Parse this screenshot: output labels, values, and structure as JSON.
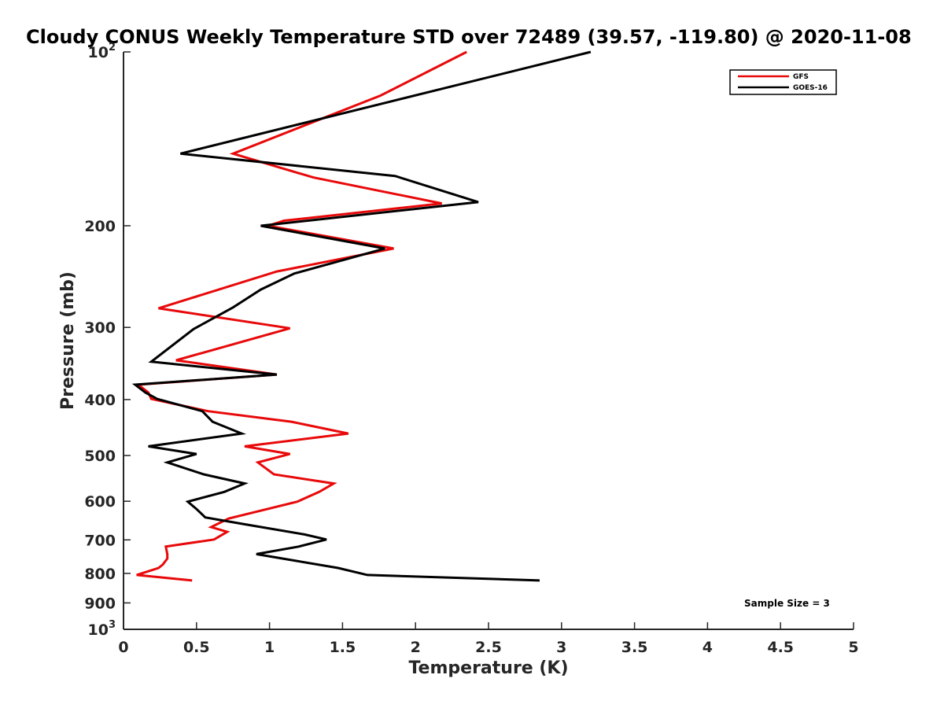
{
  "chart_data": {
    "type": "line",
    "title": "Cloudy CONUS Weekly Temperature STD over 72489 (39.57, -119.80) @ 2020-11-08",
    "xlabel": "Temperature (K)",
    "ylabel": "Pressure (mb)",
    "xlim": [
      0,
      5
    ],
    "ylim": [
      100,
      1000
    ],
    "y_scale": "log",
    "y_reversed": true,
    "grid": false,
    "legend_position": "top-right",
    "x_ticks": [
      "0",
      "0.5",
      "1",
      "1.5",
      "2",
      "2.5",
      "3",
      "3.5",
      "4",
      "4.5",
      "5"
    ],
    "y_ticks": [
      {
        "value": 100,
        "base": "10",
        "exp": "2"
      },
      {
        "value": 200,
        "label": "200"
      },
      {
        "value": 300,
        "label": "300"
      },
      {
        "value": 400,
        "label": "400"
      },
      {
        "value": 500,
        "label": "500"
      },
      {
        "value": 600,
        "label": "600"
      },
      {
        "value": 700,
        "label": "700"
      },
      {
        "value": 800,
        "label": "800"
      },
      {
        "value": 900,
        "label": "900"
      },
      {
        "value": 1000,
        "base": "10",
        "exp": "3"
      }
    ],
    "series": [
      {
        "name": "GFS",
        "color": "#e8090a",
        "points": [
          [
            2.35,
            100
          ],
          [
            1.76,
            119
          ],
          [
            0.75,
            150
          ],
          [
            1.3,
            165
          ],
          [
            2.18,
            183
          ],
          [
            1.1,
            196
          ],
          [
            0.99,
            200
          ],
          [
            1.85,
            219
          ],
          [
            1.05,
            240
          ],
          [
            0.24,
            278
          ],
          [
            1.14,
            301
          ],
          [
            0.36,
            342
          ],
          [
            1.05,
            362
          ],
          [
            0.1,
            377
          ],
          [
            0.17,
            389
          ],
          [
            0.19,
            399
          ],
          [
            0.58,
            419
          ],
          [
            1.15,
            437
          ],
          [
            1.54,
            458
          ],
          [
            0.83,
            482
          ],
          [
            1.14,
            497
          ],
          [
            0.92,
            514
          ],
          [
            1.03,
            539
          ],
          [
            1.44,
            559
          ],
          [
            1.34,
            578
          ],
          [
            1.19,
            601
          ],
          [
            0.72,
            643
          ],
          [
            0.6,
            665
          ],
          [
            0.71,
            678
          ],
          [
            0.62,
            699
          ],
          [
            0.29,
            719
          ],
          [
            0.3,
            741
          ],
          [
            0.3,
            754
          ],
          [
            0.27,
            772
          ],
          [
            0.24,
            783
          ],
          [
            0.09,
            805
          ],
          [
            0.47,
            823
          ]
        ]
      },
      {
        "name": "GOES-16",
        "color": "#000000",
        "points": [
          [
            3.2,
            100
          ],
          [
            0.39,
            150
          ],
          [
            1.86,
            164
          ],
          [
            2.43,
            182
          ],
          [
            0.94,
            200
          ],
          [
            1.79,
            219
          ],
          [
            1.17,
            242
          ],
          [
            0.94,
            258
          ],
          [
            0.75,
            277
          ],
          [
            0.48,
            302
          ],
          [
            0.19,
            344
          ],
          [
            1.05,
            362
          ],
          [
            0.08,
            377
          ],
          [
            0.15,
            389
          ],
          [
            0.23,
            399
          ],
          [
            0.54,
            419
          ],
          [
            0.61,
            437
          ],
          [
            0.81,
            458
          ],
          [
            0.17,
            482
          ],
          [
            0.5,
            497
          ],
          [
            0.3,
            514
          ],
          [
            0.55,
            539
          ],
          [
            0.83,
            559
          ],
          [
            0.69,
            578
          ],
          [
            0.44,
            601
          ],
          [
            0.5,
            619
          ],
          [
            0.56,
            640
          ],
          [
            0.82,
            657
          ],
          [
            1.24,
            685
          ],
          [
            1.39,
            699
          ],
          [
            1.2,
            719
          ],
          [
            0.91,
            741
          ],
          [
            1.18,
            761
          ],
          [
            1.47,
            783
          ],
          [
            1.67,
            805
          ],
          [
            2.85,
            823
          ]
        ]
      }
    ],
    "legend": {
      "entries": [
        "GFS",
        "GOES-16"
      ]
    },
    "annotation": "Sample Size = 3"
  }
}
